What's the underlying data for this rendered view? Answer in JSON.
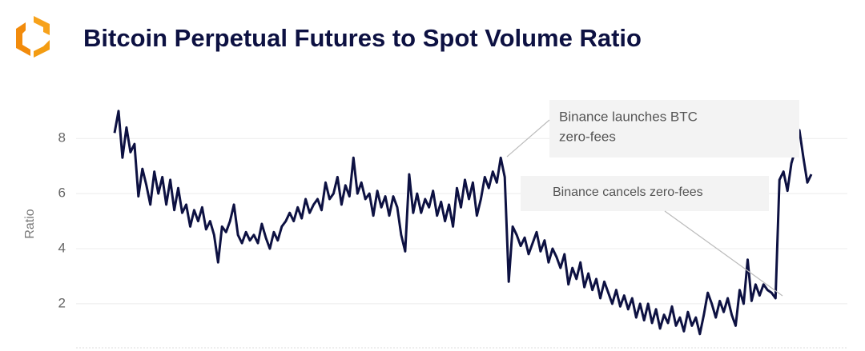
{
  "chart_data": {
    "type": "line",
    "title": "Bitcoin Perpetual Futures to Spot Volume Ratio",
    "y_label": "Ratio",
    "series": [
      {
        "name": "Perpetual Futures to Spot Volume Ratio",
        "color": "#0d1142",
        "values": [
          8.2,
          9.0,
          7.3,
          8.4,
          7.5,
          7.8,
          5.9,
          6.9,
          6.3,
          5.6,
          6.8,
          6.0,
          6.6,
          5.6,
          6.5,
          5.4,
          6.2,
          5.3,
          5.6,
          4.8,
          5.4,
          5.0,
          5.5,
          4.7,
          5.0,
          4.5,
          3.5,
          4.8,
          4.6,
          5.0,
          5.6,
          4.5,
          4.2,
          4.6,
          4.3,
          4.5,
          4.2,
          4.9,
          4.4,
          4.0,
          4.6,
          4.3,
          4.8,
          5.0,
          5.3,
          5.0,
          5.5,
          5.1,
          5.8,
          5.3,
          5.6,
          5.8,
          5.4,
          6.4,
          5.8,
          6.0,
          6.6,
          5.6,
          6.3,
          5.9,
          7.3,
          6.0,
          6.4,
          5.8,
          6.0,
          5.2,
          6.1,
          5.5,
          5.9,
          5.2,
          5.9,
          5.5,
          4.5,
          3.9,
          6.7,
          5.3,
          6.0,
          5.3,
          5.8,
          5.5,
          6.1,
          5.2,
          5.7,
          5.0,
          5.6,
          4.8,
          6.2,
          5.5,
          6.5,
          5.8,
          6.4,
          5.2,
          5.8,
          6.6,
          6.2,
          6.8,
          6.4,
          7.3,
          6.6,
          2.8,
          4.8,
          4.5,
          4.1,
          4.4,
          3.8,
          4.2,
          4.6,
          3.9,
          4.3,
          3.5,
          4.0,
          3.7,
          3.3,
          3.8,
          2.7,
          3.3,
          2.9,
          3.5,
          2.6,
          3.1,
          2.5,
          2.9,
          2.2,
          2.8,
          2.4,
          2.0,
          2.5,
          1.9,
          2.3,
          1.8,
          2.2,
          1.5,
          2.0,
          1.4,
          2.0,
          1.3,
          1.8,
          1.1,
          1.6,
          1.3,
          1.9,
          1.2,
          1.5,
          1.0,
          1.7,
          1.2,
          1.5,
          0.9,
          1.6,
          2.4,
          2.0,
          1.5,
          2.1,
          1.7,
          2.2,
          1.6,
          1.2,
          2.5,
          2.0,
          3.6,
          2.1,
          2.7,
          2.3,
          2.7,
          2.5,
          2.4,
          2.2,
          6.5,
          6.8,
          6.1,
          7.1,
          7.6,
          8.3,
          7.3,
          6.4,
          6.7
        ]
      }
    ],
    "ylim": [
      0.4,
      9.4
    ],
    "yticks": [
      2,
      4,
      6,
      8
    ],
    "grid": true,
    "annotations": [
      {
        "lines": [
          "Binance launches BTC",
          "zero-fees"
        ]
      },
      {
        "lines": [
          "Binance cancels zero-fees"
        ]
      }
    ]
  }
}
